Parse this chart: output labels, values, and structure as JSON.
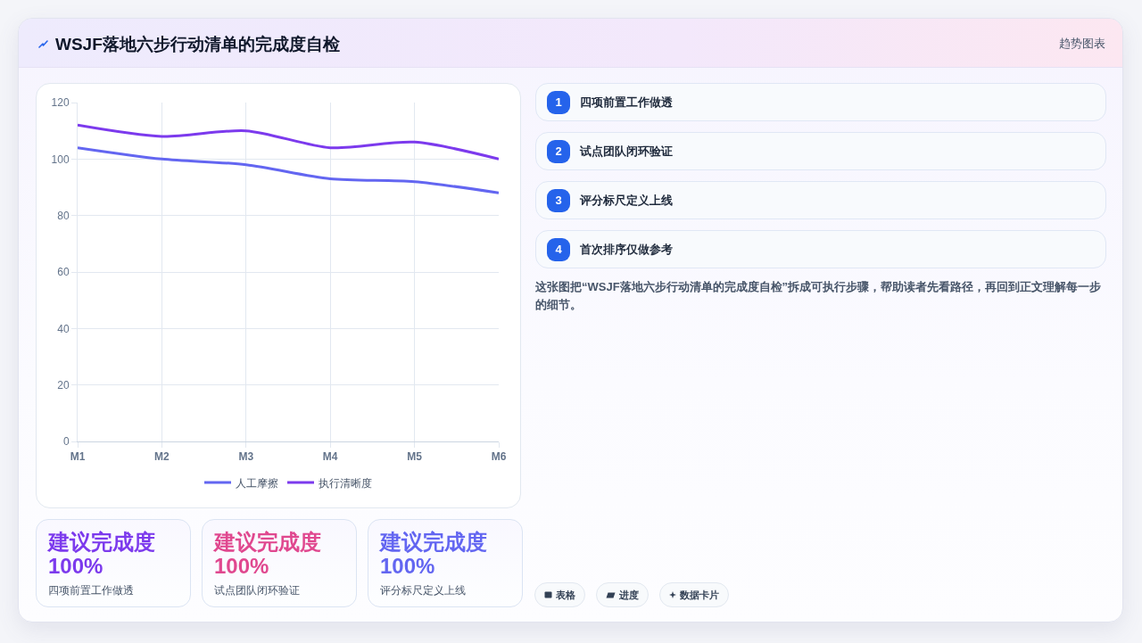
{
  "chart_data": [
    {
      "type": "other",
      "title": "WSJF落地六步行动清单的完成度自检",
      "subtitle": "趋势图表"
    },
    {
      "type": "line",
      "categories": [
        "M1",
        "M2",
        "M3",
        "M4",
        "M5",
        "M6"
      ],
      "series": [
        {
          "name": "人工摩擦",
          "color": "#6366f1",
          "values": [
            104,
            100,
            98,
            93,
            92,
            88
          ]
        },
        {
          "name": "执行清晰度",
          "color": "#7c3aed",
          "values": [
            112,
            108,
            110,
            104,
            106,
            100
          ]
        }
      ],
      "ylim": [
        0,
        120
      ],
      "yticks": [
        0,
        20,
        40,
        60,
        80,
        100,
        120
      ],
      "grid": true,
      "legend": "bottom"
    },
    {
      "type": "other",
      "categories": [
        "四项前置工作做透",
        "试点团队闭环验证",
        "评分标尺定义上线",
        "首次排序仅做参考"
      ],
      "values": [
        1,
        2,
        3,
        4
      ],
      "data_labels": true,
      "annotations": [
        "这张图把“WSJF落地六步行动清单的完成度自检”拆成可执行步骤，帮助读者先看路径，再回到正文理解每一步的细节。"
      ]
    },
    {
      "type": "other",
      "title": "建议完成度",
      "annotations": [
        "100%",
        "四项前置工作做透"
      ]
    },
    {
      "type": "other",
      "title": "建议完成度",
      "annotations": [
        "100%",
        "试点团队闭环验证"
      ]
    },
    {
      "type": "other",
      "title": "建议完成度",
      "annotations": [
        "100%",
        "评分标尺定义上线"
      ]
    },
    {
      "type": "other",
      "categories": [
        "表格",
        "进度",
        "数据卡片"
      ]
    }
  ]
}
